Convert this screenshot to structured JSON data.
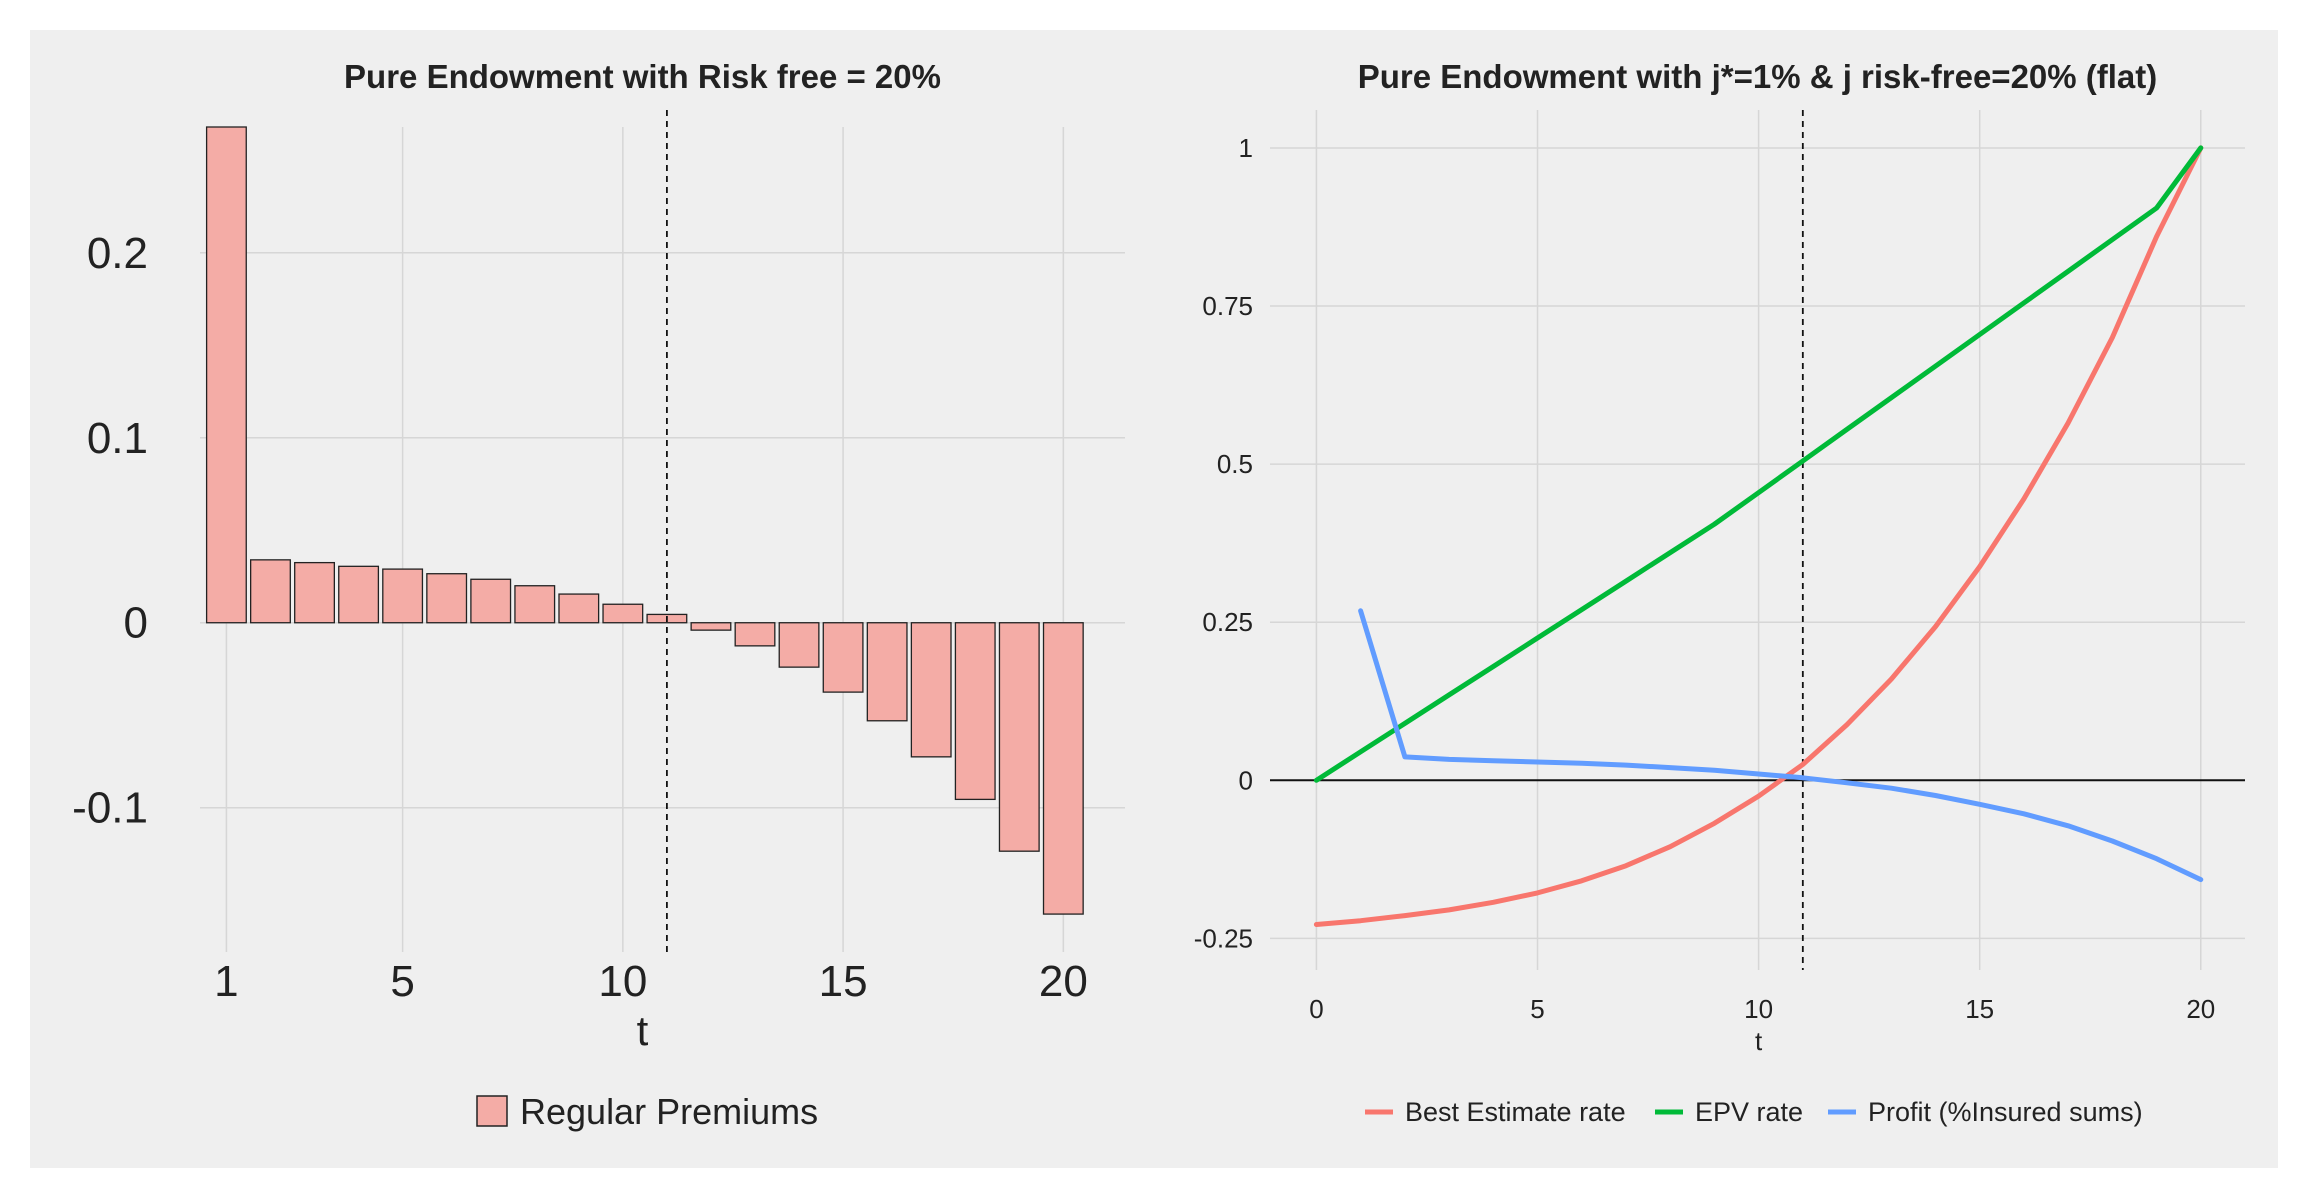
{
  "chart_data": [
    {
      "type": "bar",
      "title": "Pure Endowment with Risk free = 20%",
      "xlabel": "t",
      "ylabel": "",
      "categories": [
        1,
        2,
        3,
        4,
        5,
        6,
        7,
        8,
        9,
        10,
        11,
        12,
        13,
        14,
        15,
        16,
        17,
        18,
        19,
        20
      ],
      "x_ticks": [
        1,
        5,
        10,
        15,
        20
      ],
      "y_ticks": [
        0.2,
        0.1,
        0,
        -0.1
      ],
      "y_tick_labels": [
        "0.2",
        "0.1",
        "0",
        "-0.1"
      ],
      "xlim": [
        0.4,
        21.4
      ],
      "ylim": [
        -0.178,
        0.268
      ],
      "vline_x": 11.0,
      "series": [
        {
          "name": "Regular Premiums",
          "color": "#f4aca6",
          "values": [
            0.268,
            0.034,
            0.0325,
            0.0305,
            0.029,
            0.0265,
            0.0235,
            0.02,
            0.0155,
            0.01,
            0.0045,
            -0.004,
            -0.0125,
            -0.024,
            -0.0375,
            -0.053,
            -0.0725,
            -0.0955,
            -0.1235,
            -0.1575
          ]
        }
      ],
      "legend": [
        "Regular Premiums"
      ]
    },
    {
      "type": "line",
      "title": "Pure Endowment with j*=1% & j risk-free=20% (flat)",
      "xlabel": "t",
      "ylabel": "",
      "x_ticks": [
        0,
        5,
        10,
        15,
        20
      ],
      "y_ticks": [
        1,
        0.75,
        0.5,
        0.25,
        0,
        -0.25
      ],
      "y_tick_labels": [
        "1",
        "0.75",
        "0.5",
        "0.25",
        "0",
        "-0.25"
      ],
      "xlim": [
        -1.05,
        21.0
      ],
      "ylim": [
        -0.3,
        1.06
      ],
      "vline_x": 11.0,
      "hline_y": 0,
      "series": [
        {
          "name": "Best Estimate rate",
          "color": "#f8766d",
          "x": [
            0,
            1,
            2,
            3,
            4,
            5,
            6,
            7,
            8,
            9,
            10,
            11,
            12,
            13,
            14,
            15,
            16,
            17,
            18,
            19,
            20
          ],
          "values": [
            -0.228,
            -0.222,
            -0.214,
            -0.205,
            -0.193,
            -0.178,
            -0.159,
            -0.135,
            -0.105,
            -0.068,
            -0.025,
            0.025,
            0.088,
            0.16,
            0.243,
            0.338,
            0.445,
            0.565,
            0.7,
            0.86,
            1.0
          ]
        },
        {
          "name": "EPV rate",
          "color": "#00ba38",
          "x": [
            0,
            1,
            2,
            3,
            4,
            5,
            6,
            7,
            8,
            9,
            10,
            11,
            12,
            13,
            14,
            15,
            16,
            17,
            18,
            19,
            20
          ],
          "values": [
            0,
            0.045,
            0.09,
            0.135,
            0.18,
            0.225,
            0.27,
            0.315,
            0.36,
            0.405,
            0.455,
            0.505,
            0.555,
            0.605,
            0.655,
            0.705,
            0.755,
            0.805,
            0.855,
            0.905,
            1.0
          ]
        },
        {
          "name": "Profit (%Insured sums)",
          "color": "#619cff",
          "x": [
            1,
            2,
            3,
            4,
            5,
            6,
            7,
            8,
            9,
            10,
            11,
            12,
            13,
            14,
            15,
            16,
            17,
            18,
            19,
            20
          ],
          "values": [
            0.268,
            0.037,
            0.033,
            0.031,
            0.029,
            0.027,
            0.024,
            0.02,
            0.016,
            0.01,
            0.004,
            -0.004,
            -0.0125,
            -0.024,
            -0.038,
            -0.053,
            -0.072,
            -0.096,
            -0.124,
            -0.157
          ]
        }
      ],
      "legend": [
        "Best Estimate rate",
        "EPV rate",
        "Profit (%Insured sums)"
      ]
    }
  ]
}
